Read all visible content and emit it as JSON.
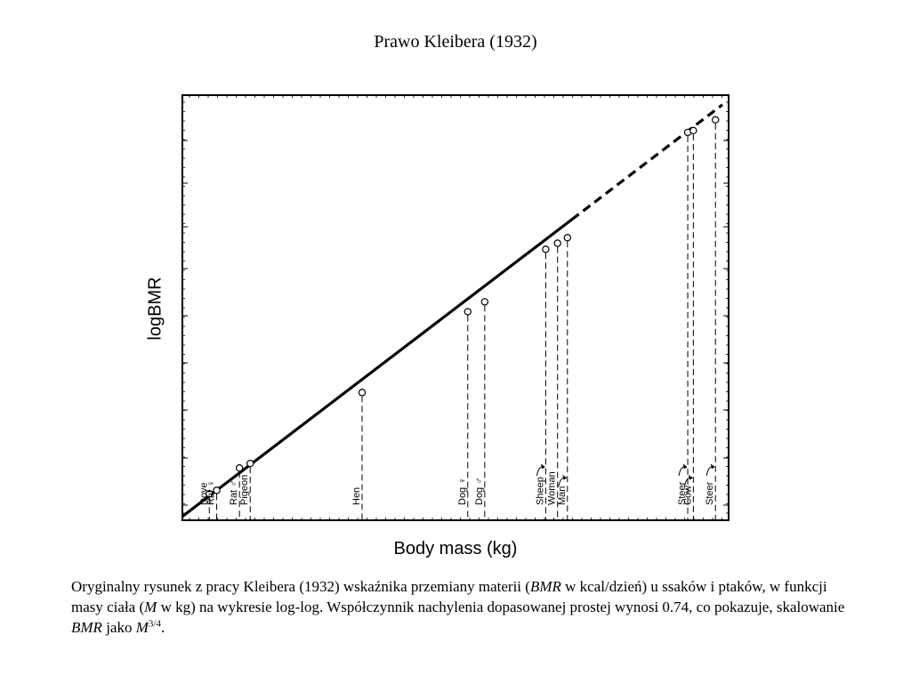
{
  "title": "Prawo Kleibera (1932)",
  "chart_data": {
    "type": "scatter",
    "title": "Prawo Kleibera (1932)",
    "xlabel": "Body mass (kg)",
    "ylabel": "logBMR",
    "xscale": "log",
    "yscale": "log",
    "grid": false,
    "fit": {
      "type": "line",
      "slope": 0.74,
      "style": "solid then dashed"
    },
    "points": [
      {
        "label": "Dove",
        "x": 0.15,
        "y": 17
      },
      {
        "label": "Rat ♀",
        "x": 0.17,
        "y": 18
      },
      {
        "label": "Rat ♂",
        "x": 0.25,
        "y": 26
      },
      {
        "label": "Pigeon",
        "x": 0.3,
        "y": 28
      },
      {
        "label": "Hen",
        "x": 2.0,
        "y": 90
      },
      {
        "label": "Dog ♀",
        "x": 12,
        "y": 340
      },
      {
        "label": "Dog ♂",
        "x": 16,
        "y": 400
      },
      {
        "label": "Sheep",
        "x": 45,
        "y": 950
      },
      {
        "label": "Woman",
        "x": 55,
        "y": 1050
      },
      {
        "label": "Man",
        "x": 65,
        "y": 1150
      },
      {
        "label": "Steer",
        "x": 500,
        "y": 6500
      },
      {
        "label": "Cow",
        "x": 550,
        "y": 6700
      },
      {
        "label": "Steer",
        "x": 800,
        "y": 8000
      }
    ],
    "label_arrows": [
      "Sheep",
      "Man",
      "Steer",
      "Cow"
    ]
  },
  "caption": {
    "part1": "Oryginalny rysunek z pracy Kleibera (1932) wskaźnika przemiany materii (",
    "bmr1": "BMR",
    "part2": " w kcal/dzień) u ssaków i ptaków, w funkcji masy ciała (",
    "m1": "M",
    "part3": " w kg) na wykresie log-log. Współczynnik nachylenia dopasowanej prostej wynosi 0.74, co pokazuje, skalowanie ",
    "bmr2": "BMR",
    "part4": " jako ",
    "m2": "M",
    "exponent": "3/4",
    "part5": "."
  }
}
